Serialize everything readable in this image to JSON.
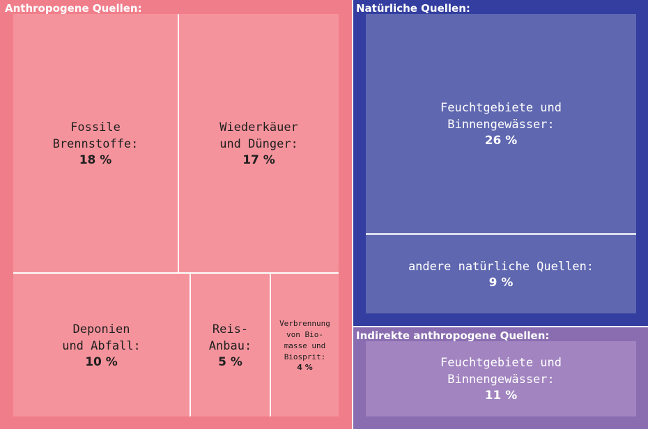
{
  "chart_data": {
    "type": "treemap",
    "groups": [
      {
        "name": "Anthropogene Quellen:",
        "color": "#f07e8a",
        "cell_color": "#f5939c",
        "items": [
          {
            "label": "Fossile\nBrennstoffe:",
            "value": 18,
            "value_label": "18 %"
          },
          {
            "label": "Wiederkäuer\nund Dünger:",
            "value": 17,
            "value_label": "17 %"
          },
          {
            "label": "Deponien\nund Abfall:",
            "value": 10,
            "value_label": "10 %"
          },
          {
            "label": "Reis-\nAnbau:",
            "value": 5,
            "value_label": "5 %"
          },
          {
            "label": "Verbrennung\nvon Bio-\nmasse und\nBiosprit:",
            "value": 4,
            "value_label": "4 %"
          }
        ]
      },
      {
        "name": "Natürliche Quellen:",
        "color": "#333ea0",
        "cell_color": "#5f67b0",
        "items": [
          {
            "label": "Feuchtgebiete und\nBinnengewässer:",
            "value": 26,
            "value_label": "26 %"
          },
          {
            "label": "andere natürliche Quellen:",
            "value": 9,
            "value_label": "9 %"
          }
        ]
      },
      {
        "name": "Indirekte anthropogene Quellen:",
        "color": "#8a6db0",
        "cell_color": "#a284c0",
        "items": [
          {
            "label": "Feuchtgebiete und\nBinnengewässer:",
            "value": 11,
            "value_label": "11 %"
          }
        ]
      }
    ]
  }
}
